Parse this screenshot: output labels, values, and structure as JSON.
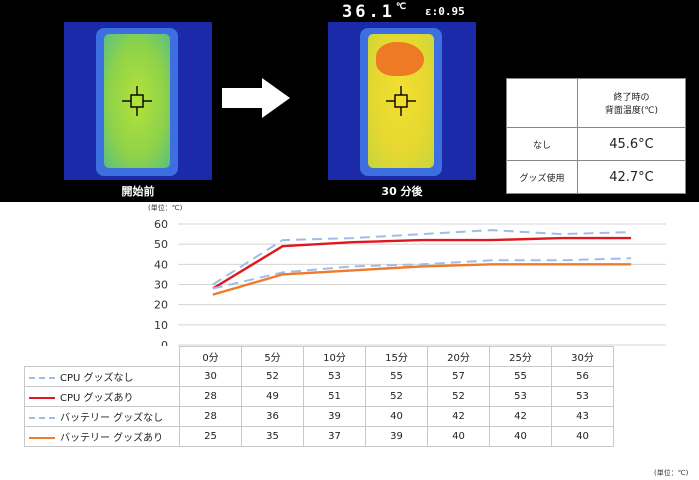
{
  "thermal_images": {
    "before_caption": "開始前",
    "after_caption": "30 分後",
    "temperature_reading": "36.1",
    "temperature_unit": "℃",
    "emissivity_label": "ε:0.95"
  },
  "result_table": {
    "header_line1": "終了時の",
    "header_line2": "背面温度(℃)",
    "rows": [
      {
        "label": "なし",
        "value": "45.6°C"
      },
      {
        "label": "グッズ使用",
        "value": "42.7°C"
      }
    ]
  },
  "chart_data": {
    "type": "line",
    "ylabel": "(単位：℃)",
    "ylim": [
      0,
      60
    ],
    "yticks": [
      0,
      10,
      20,
      30,
      40,
      50,
      60
    ],
    "categories": [
      "0分",
      "5分",
      "10分",
      "15分",
      "20分",
      "25分",
      "30分"
    ],
    "grid": true,
    "legend_placement": "table-left",
    "series": [
      {
        "name": "CPU グッズなし",
        "values": [
          30,
          52,
          53,
          55,
          57,
          55,
          56
        ],
        "color": "#9fbde6",
        "style": "dashed"
      },
      {
        "name": "CPU グッズあり",
        "values": [
          28,
          49,
          51,
          52,
          52,
          53,
          53
        ],
        "color": "#e0181e",
        "style": "solid"
      },
      {
        "name": "バッテリー グッズなし",
        "values": [
          28,
          36,
          39,
          40,
          42,
          42,
          43
        ],
        "color": "#9fbde6",
        "style": "dashed"
      },
      {
        "name": "バッテリー グッズあり",
        "values": [
          25,
          35,
          37,
          39,
          40,
          40,
          40
        ],
        "color": "#f07a2c",
        "style": "solid"
      }
    ]
  },
  "footer_unit": "(単位：℃)"
}
